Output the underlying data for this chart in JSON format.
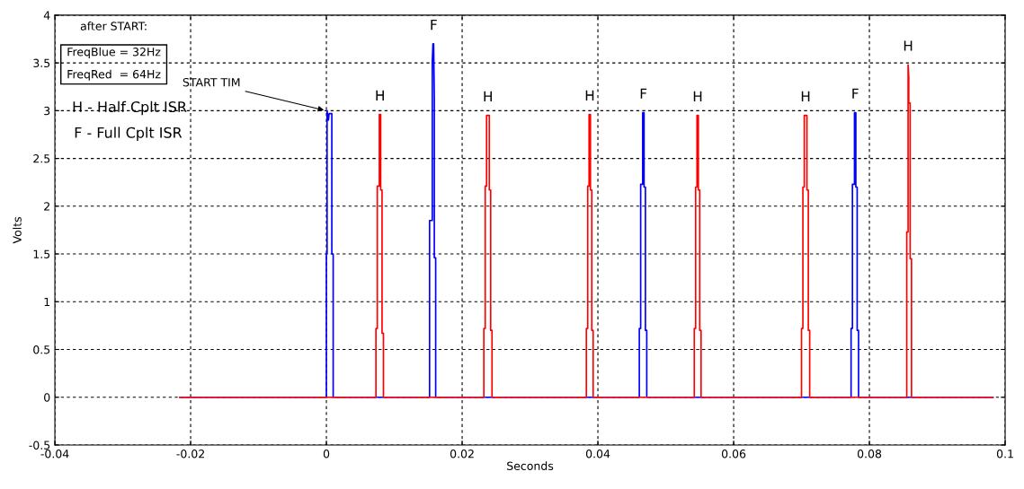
{
  "chart_data": {
    "type": "line",
    "xlabel": "Seconds",
    "ylabel": "Volts",
    "xlim": [
      -0.04,
      0.1
    ],
    "xticks": [
      -0.04,
      -0.02,
      0,
      0.02,
      0.04,
      0.06,
      0.08,
      0.1
    ],
    "ylim": [
      -0.5,
      4
    ],
    "yticks": [
      -0.5,
      0,
      0.5,
      1,
      1.5,
      2,
      2.5,
      3,
      3.5,
      4
    ],
    "grid": true,
    "legend": false,
    "marker": "none",
    "line_style": "solid",
    "tick_labels": "xy",
    "series": [
      {
        "color": "#0000ff",
        "x": [
          -0.0216,
          0,
          0,
          0.0001,
          0.0001,
          0.0003,
          0.0004,
          0.0008,
          0.0008,
          0.001,
          0.001,
          0.0152,
          0.0152,
          0.0156,
          0.0156,
          0.0157,
          0.0158,
          0.0159,
          0.0159,
          0.0161,
          0.0161,
          0.0164,
          0.0164,
          0.0461,
          0.0461,
          0.0463,
          0.0463,
          0.0466,
          0.0466,
          0.0468,
          0.0468,
          0.047,
          0.047,
          0.0472,
          0.0472,
          0.0773,
          0.0773,
          0.0775,
          0.0775,
          0.0778,
          0.0778,
          0.078,
          0.078,
          0.0782,
          0.0782,
          0.0784,
          0.0784,
          0.0982
        ],
        "values": [
          0,
          0,
          1.5,
          1.5,
          3.0,
          2.9,
          2.97,
          2.97,
          1.5,
          1.5,
          0,
          0,
          1.85,
          1.85,
          3.51,
          3.7,
          3.7,
          3.13,
          1.46,
          1.46,
          0,
          0,
          0,
          0,
          0.72,
          0.72,
          2.23,
          2.23,
          2.98,
          2.98,
          2.2,
          2.2,
          0.7,
          0.7,
          0,
          0,
          0.72,
          0.72,
          2.23,
          2.23,
          2.98,
          2.98,
          2.2,
          2.2,
          0.7,
          0.7,
          0,
          0
        ]
      },
      {
        "color": "#ff0000",
        "x": [
          -0.0216,
          0.0073,
          0.0073,
          0.0075,
          0.0075,
          0.0078,
          0.0078,
          0.008,
          0.008,
          0.0082,
          0.0082,
          0.0084,
          0.0084,
          0.0232,
          0.0232,
          0.0234,
          0.0234,
          0.0236,
          0.0236,
          0.024,
          0.024,
          0.0242,
          0.0242,
          0.0244,
          0.0244,
          0.0383,
          0.0383,
          0.0385,
          0.0385,
          0.0387,
          0.0387,
          0.0389,
          0.0389,
          0.0391,
          0.0391,
          0.0393,
          0.0393,
          0.0542,
          0.0542,
          0.0544,
          0.0544,
          0.0546,
          0.0546,
          0.0548,
          0.0548,
          0.055,
          0.055,
          0.0552,
          0.0552,
          0.07,
          0.07,
          0.0702,
          0.0702,
          0.0704,
          0.0704,
          0.0708,
          0.0708,
          0.071,
          0.071,
          0.0712,
          0.0712,
          0.0855,
          0.0855,
          0.0857,
          0.0857,
          0.0858,
          0.0858,
          0.086,
          0.086,
          0.0862,
          0.0862,
          0.0982
        ],
        "values": [
          0,
          0,
          0.72,
          0.72,
          2.21,
          2.21,
          2.96,
          2.96,
          2.17,
          2.17,
          0.67,
          0.67,
          0,
          0,
          0.72,
          0.72,
          2.21,
          2.21,
          2.95,
          2.95,
          2.17,
          2.17,
          0.7,
          0.7,
          0,
          0,
          0.72,
          0.72,
          2.21,
          2.21,
          2.96,
          2.96,
          2.17,
          2.17,
          0.7,
          0.7,
          0,
          0,
          0.72,
          0.72,
          2.2,
          2.2,
          2.95,
          2.95,
          2.17,
          2.17,
          0.7,
          0.7,
          0,
          0,
          0.72,
          0.72,
          2.2,
          2.2,
          2.95,
          2.95,
          2.17,
          2.17,
          0.7,
          0.7,
          0,
          0,
          1.73,
          1.73,
          3.48,
          3.35,
          3.08,
          3.08,
          1.45,
          1.45,
          0,
          0
        ]
      }
    ],
    "annotations": [
      {
        "text": "START TIM",
        "x": 0,
        "y": 3.0
      },
      "after START:",
      "FreqBlue = 32Hz",
      "FreqRed  = 64Hz",
      "H - Half Cplt ISR",
      "F - Full Cplt ISR",
      {
        "text": "H",
        "x": 0.0079,
        "y": 2.96
      },
      {
        "text": "F",
        "x": 0.0158,
        "y": 3.7
      },
      {
        "text": "H",
        "x": 0.0238,
        "y": 2.95
      },
      {
        "text": "H",
        "x": 0.0388,
        "y": 2.96
      },
      {
        "text": "F",
        "x": 0.0467,
        "y": 2.98
      },
      {
        "text": "H",
        "x": 0.0547,
        "y": 2.95
      },
      {
        "text": "H",
        "x": 0.0706,
        "y": 2.95
      },
      {
        "text": "F",
        "x": 0.0779,
        "y": 2.98
      },
      {
        "text": "H",
        "x": 0.0857,
        "y": 3.48
      }
    ]
  }
}
